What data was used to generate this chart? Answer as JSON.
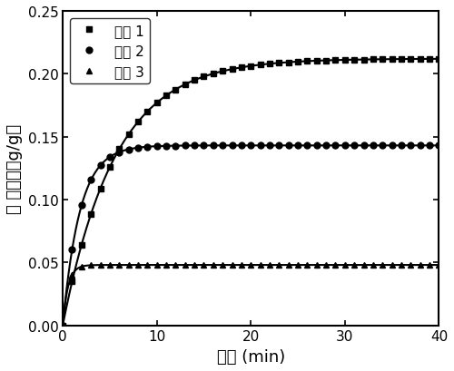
{
  "title": "",
  "xlabel": "时间 (min)",
  "ylabel": "水 吸附量（g/g）",
  "xlim": [
    0,
    40
  ],
  "ylim": [
    0.0,
    0.25
  ],
  "yticks": [
    0.0,
    0.05,
    0.1,
    0.15,
    0.2,
    0.25
  ],
  "xticks": [
    0,
    10,
    20,
    30,
    40
  ],
  "series": [
    {
      "label": "实例 1",
      "marker": "s",
      "saturation": 0.212,
      "k": 0.18,
      "color": "#000000"
    },
    {
      "label": "实例 2",
      "marker": "o",
      "saturation": 0.143,
      "k": 0.55,
      "color": "#000000"
    },
    {
      "label": "实例 3",
      "marker": "^",
      "saturation": 0.048,
      "k": 1.8,
      "color": "#000000"
    }
  ],
  "legend_fontsize": 11,
  "axis_fontsize": 13,
  "tick_fontsize": 11,
  "linewidth": 1.5,
  "markersize": 5
}
